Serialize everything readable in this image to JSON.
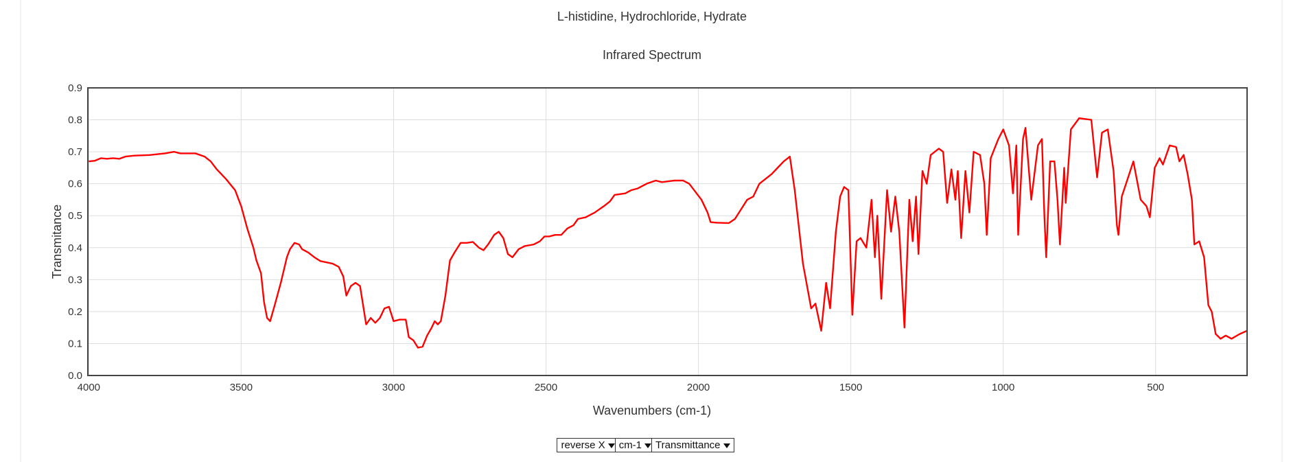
{
  "chart_data": {
    "type": "line",
    "title": "L-histidine, Hydrochloride, Hydrate",
    "subtitle": "Infrared Spectrum",
    "xlabel": "Wavenumbers (cm-1)",
    "ylabel": "Transmitance",
    "color": "#ff0000",
    "grid": true,
    "xlim": [
      4003,
      200
    ],
    "ylim": [
      0,
      0.9
    ],
    "xticks": [
      4000,
      3500,
      3000,
      2500,
      2000,
      1500,
      1000,
      500
    ],
    "yticks": [
      {
        "value": 0,
        "label": "0.0"
      },
      0.1,
      0.2,
      0.3,
      0.4,
      0.5,
      0.6,
      0.7,
      0.8,
      0.9
    ],
    "x": [
      4000,
      3980,
      3960,
      3940,
      3920,
      3900,
      3880,
      3850,
      3800,
      3750,
      3720,
      3700,
      3650,
      3620,
      3600,
      3580,
      3550,
      3520,
      3500,
      3480,
      3460,
      3450,
      3435,
      3425,
      3415,
      3405,
      3390,
      3370,
      3350,
      3340,
      3325,
      3310,
      3300,
      3280,
      3260,
      3240,
      3200,
      3180,
      3165,
      3155,
      3140,
      3125,
      3110,
      3090,
      3075,
      3060,
      3045,
      3030,
      3015,
      3000,
      2980,
      2960,
      2950,
      2935,
      2920,
      2905,
      2890,
      2875,
      2865,
      2855,
      2845,
      2830,
      2815,
      2800,
      2780,
      2760,
      2740,
      2720,
      2705,
      2690,
      2670,
      2655,
      2640,
      2625,
      2610,
      2590,
      2570,
      2540,
      2520,
      2505,
      2490,
      2470,
      2450,
      2430,
      2410,
      2395,
      2370,
      2340,
      2310,
      2290,
      2275,
      2240,
      2220,
      2200,
      2170,
      2140,
      2120,
      2080,
      2050,
      2030,
      2010,
      1990,
      1970,
      1960,
      1940,
      1900,
      1880,
      1860,
      1840,
      1820,
      1800,
      1780,
      1760,
      1740,
      1720,
      1700,
      1684,
      1657,
      1630,
      1616,
      1597,
      1581,
      1568,
      1549,
      1535,
      1522,
      1508,
      1495,
      1481,
      1468,
      1449,
      1432,
      1421,
      1413,
      1400,
      1381,
      1368,
      1354,
      1341,
      1324,
      1308,
      1297,
      1286,
      1278,
      1265,
      1251,
      1238,
      1211,
      1197,
      1184,
      1170,
      1157,
      1149,
      1138,
      1124,
      1111,
      1097,
      1076,
      1062,
      1054,
      1041,
      1016,
      1000,
      981,
      968,
      957,
      951,
      935,
      927,
      908,
      886,
      873,
      865,
      859,
      846,
      832,
      822,
      814,
      800,
      795,
      778,
      751,
      711,
      692,
      676,
      657,
      638,
      627,
      622,
      611,
      597,
      573,
      549,
      530,
      519,
      503,
      487,
      476,
      454,
      433,
      422,
      408,
      395,
      381,
      373,
      357,
      341,
      327,
      316,
      303,
      287,
      270,
      251,
      224,
      200
    ],
    "values": [
      0.67,
      0.672,
      0.68,
      0.678,
      0.68,
      0.678,
      0.685,
      0.688,
      0.69,
      0.695,
      0.7,
      0.695,
      0.695,
      0.685,
      0.67,
      0.645,
      0.615,
      0.58,
      0.53,
      0.46,
      0.4,
      0.36,
      0.32,
      0.23,
      0.18,
      0.17,
      0.22,
      0.29,
      0.37,
      0.395,
      0.415,
      0.41,
      0.395,
      0.385,
      0.37,
      0.358,
      0.35,
      0.34,
      0.31,
      0.25,
      0.28,
      0.29,
      0.28,
      0.16,
      0.18,
      0.165,
      0.18,
      0.21,
      0.215,
      0.17,
      0.175,
      0.175,
      0.12,
      0.11,
      0.087,
      0.09,
      0.125,
      0.15,
      0.17,
      0.16,
      0.17,
      0.25,
      0.36,
      0.385,
      0.415,
      0.415,
      0.418,
      0.4,
      0.392,
      0.41,
      0.44,
      0.45,
      0.43,
      0.38,
      0.37,
      0.395,
      0.405,
      0.41,
      0.42,
      0.435,
      0.435,
      0.44,
      0.44,
      0.46,
      0.47,
      0.49,
      0.495,
      0.51,
      0.53,
      0.545,
      0.565,
      0.57,
      0.58,
      0.585,
      0.6,
      0.61,
      0.605,
      0.61,
      0.61,
      0.6,
      0.575,
      0.55,
      0.51,
      0.48,
      0.478,
      0.477,
      0.49,
      0.52,
      0.55,
      0.56,
      0.6,
      0.615,
      0.63,
      0.65,
      0.67,
      0.685,
      0.58,
      0.35,
      0.21,
      0.225,
      0.14,
      0.29,
      0.21,
      0.45,
      0.56,
      0.59,
      0.58,
      0.19,
      0.42,
      0.43,
      0.4,
      0.55,
      0.37,
      0.5,
      0.24,
      0.58,
      0.45,
      0.56,
      0.45,
      0.15,
      0.55,
      0.42,
      0.56,
      0.38,
      0.64,
      0.6,
      0.69,
      0.71,
      0.7,
      0.54,
      0.645,
      0.55,
      0.64,
      0.43,
      0.64,
      0.51,
      0.7,
      0.69,
      0.6,
      0.44,
      0.68,
      0.74,
      0.77,
      0.72,
      0.57,
      0.72,
      0.44,
      0.74,
      0.775,
      0.55,
      0.72,
      0.74,
      0.5,
      0.37,
      0.67,
      0.67,
      0.55,
      0.41,
      0.65,
      0.54,
      0.77,
      0.805,
      0.8,
      0.62,
      0.76,
      0.77,
      0.64,
      0.47,
      0.44,
      0.56,
      0.6,
      0.67,
      0.55,
      0.53,
      0.495,
      0.65,
      0.68,
      0.66,
      0.72,
      0.715,
      0.67,
      0.69,
      0.63,
      0.55,
      0.41,
      0.42,
      0.37,
      0.22,
      0.2,
      0.13,
      0.115,
      0.125,
      0.115,
      0.13,
      0.14
    ]
  },
  "controls": [
    "reverse X",
    "cm-1",
    "Transmittance"
  ]
}
